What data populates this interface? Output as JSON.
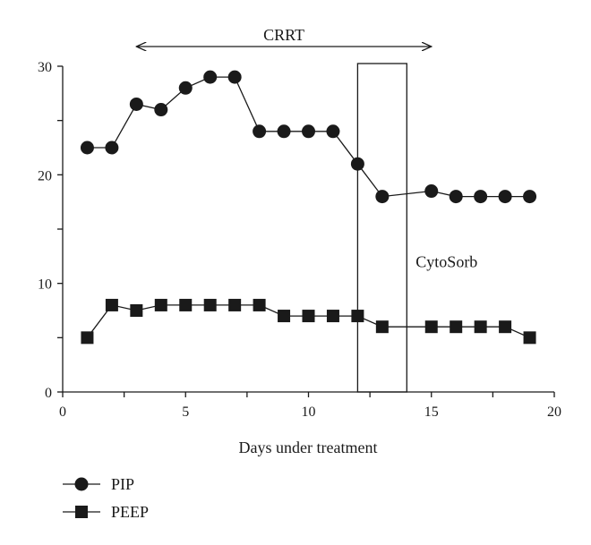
{
  "chart_data": {
    "type": "line",
    "xlabel": "Days under treatment",
    "ylabel": "",
    "xlim": [
      0,
      20
    ],
    "ylim": [
      0,
      30
    ],
    "xticks": [
      0,
      5,
      10,
      15,
      20
    ],
    "yticks": [
      0,
      10,
      20,
      30
    ],
    "grid": false,
    "legend_position": "bottom-left",
    "series": [
      {
        "name": "PIP",
        "marker": "circle",
        "color": "#1a1a1a",
        "x": [
          1,
          2,
          3,
          4,
          5,
          6,
          7,
          8,
          9,
          10,
          11,
          12,
          13,
          15,
          16,
          17,
          18,
          19
        ],
        "y": [
          22.5,
          22.5,
          26.5,
          26,
          28,
          29,
          29,
          24,
          24,
          24,
          24,
          21,
          18,
          18.5,
          18,
          18,
          18,
          18
        ]
      },
      {
        "name": "PEEP",
        "marker": "square",
        "color": "#1a1a1a",
        "x": [
          1,
          2,
          3,
          4,
          5,
          6,
          7,
          8,
          9,
          10,
          11,
          12,
          13,
          15,
          16,
          17,
          18,
          19
        ],
        "y": [
          5,
          8,
          7.5,
          8,
          8,
          8,
          8,
          8,
          7,
          7,
          7,
          7,
          6,
          6,
          6,
          6,
          6,
          5
        ]
      }
    ],
    "annotations": [
      {
        "kind": "range-arrow",
        "text": "CRRT",
        "x_start": 3,
        "x_end": 15
      },
      {
        "kind": "box",
        "text": "CytoSorb",
        "x_start": 12,
        "x_end": 14
      }
    ]
  }
}
